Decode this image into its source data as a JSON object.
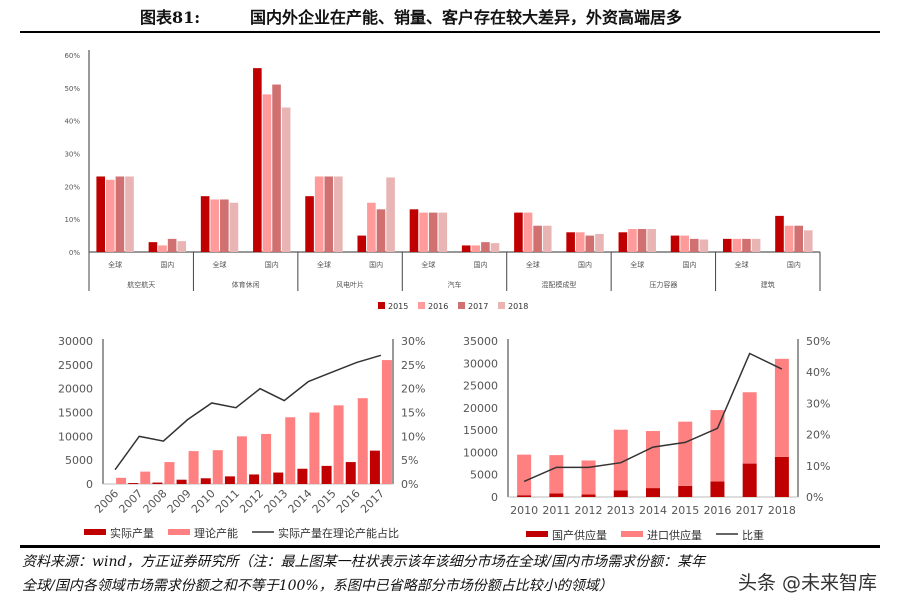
{
  "title": {
    "number": "图表81:",
    "text": "国内外企业在产能、销量、客户存在较大差异，外资高端居多"
  },
  "footer": {
    "line1": "资料来源：wind，方正证券研究所（注：最上图某一柱状表示该年该细分市场在全球/国内市场需求份额：某年",
    "line2": "全球/国内各领域市场需求份额之和不等于100%，系图中已省略部分市场份额占比较小的领域）"
  },
  "watermark": "头条 @未来智库",
  "chart_data": [
    {
      "type": "bar",
      "ylim": [
        0,
        60
      ],
      "yticks": [
        "0%",
        "10%",
        "20%",
        "30%",
        "40%",
        "50%",
        "60%"
      ],
      "legend_position": "bottom",
      "colors": [
        "#c00000",
        "#ff9b9b",
        "#d07070",
        "#e8b4b4"
      ],
      "series_names": [
        "2015",
        "2016",
        "2017",
        "2018"
      ],
      "groups": [
        {
          "name": "航空航天",
          "sub": [
            {
              "label": "全球",
              "values": [
                23,
                22,
                23,
                23
              ]
            },
            {
              "label": "国内",
              "values": [
                3,
                2,
                4,
                3.3
              ]
            }
          ]
        },
        {
          "name": "体育休闲",
          "sub": [
            {
              "label": "全球",
              "values": [
                17,
                16,
                16,
                15
              ]
            },
            {
              "label": "国内",
              "values": [
                56,
                48,
                51,
                44
              ]
            }
          ]
        },
        {
          "name": "风电叶片",
          "sub": [
            {
              "label": "全球",
              "values": [
                17,
                23,
                23,
                23
              ]
            },
            {
              "label": "国内",
              "values": [
                5,
                15,
                13,
                22.7
              ]
            }
          ]
        },
        {
          "name": "汽车",
          "sub": [
            {
              "label": "全球",
              "values": [
                13,
                12,
                12,
                12
              ]
            },
            {
              "label": "国内",
              "values": [
                2,
                2,
                3,
                2.7
              ]
            }
          ]
        },
        {
          "name": "混配模成型",
          "sub": [
            {
              "label": "全球",
              "values": [
                12,
                12,
                8,
                8
              ]
            },
            {
              "label": "国内",
              "values": [
                6,
                6,
                5,
                5.5
              ]
            }
          ]
        },
        {
          "name": "压力容器",
          "sub": [
            {
              "label": "全球",
              "values": [
                6,
                7,
                7,
                7
              ]
            },
            {
              "label": "国内",
              "values": [
                5,
                5,
                4,
                3.8
              ]
            }
          ]
        },
        {
          "name": "建筑",
          "sub": [
            {
              "label": "全球",
              "values": [
                4,
                4,
                4,
                4
              ]
            },
            {
              "label": "国内",
              "values": [
                11,
                8,
                8,
                6.6
              ]
            }
          ]
        }
      ]
    },
    {
      "type": "bar",
      "categories": [
        "2006",
        "2007",
        "2008",
        "2009",
        "2010",
        "2011",
        "2012",
        "2013",
        "2014",
        "2015",
        "2016",
        "2017"
      ],
      "ylim": [
        0,
        30000
      ],
      "y2lim": [
        0,
        30
      ],
      "yticks": [
        "0",
        "5000",
        "10000",
        "15000",
        "20000",
        "25000",
        "30000"
      ],
      "y2ticks": [
        "0%",
        "5%",
        "10%",
        "15%",
        "20%",
        "25%",
        "30%"
      ],
      "legend_position": "bottom",
      "series": [
        {
          "name": "实际产量",
          "kind": "bar",
          "color": "#c00000",
          "values": [
            0,
            200,
            300,
            900,
            1200,
            1600,
            2000,
            2400,
            3200,
            3800,
            4600,
            7000
          ]
        },
        {
          "name": "理论产能",
          "kind": "bar",
          "color": "#ff8080",
          "values": [
            1300,
            2600,
            4600,
            6900,
            7100,
            10000,
            10500,
            14000,
            15000,
            16500,
            18000,
            26000
          ]
        },
        {
          "name": "实际产量在理论产能占比",
          "kind": "line",
          "axis": "right",
          "color": "#333333",
          "values": [
            3,
            10,
            9,
            13.5,
            17,
            16,
            20,
            17.5,
            21.5,
            23.5,
            25.5,
            27
          ]
        }
      ]
    },
    {
      "type": "bar",
      "stacked": true,
      "categories": [
        "2010",
        "2011",
        "2012",
        "2013",
        "2014",
        "2015",
        "2016",
        "2017",
        "2018"
      ],
      "ylim": [
        0,
        35000
      ],
      "y2lim": [
        0,
        50
      ],
      "yticks": [
        "0",
        "5000",
        "10000",
        "15000",
        "20000",
        "25000",
        "30000",
        "35000"
      ],
      "y2ticks": [
        "0%",
        "10%",
        "20%",
        "30%",
        "40%",
        "50%"
      ],
      "legend_position": "bottom",
      "series": [
        {
          "name": "国产供应量",
          "kind": "bar",
          "color": "#c00000",
          "values": [
            400,
            800,
            600,
            1500,
            2000,
            2500,
            3500,
            7500,
            9000
          ]
        },
        {
          "name": "进口供应量",
          "kind": "bar",
          "color": "#ff8080",
          "values": [
            9100,
            8600,
            7600,
            13600,
            12800,
            14400,
            16000,
            16000,
            22000
          ]
        },
        {
          "name": "比重",
          "kind": "line",
          "axis": "right",
          "color": "#333333",
          "values": [
            5,
            9.5,
            9.5,
            11,
            16,
            17.5,
            22,
            46,
            41
          ]
        }
      ]
    }
  ]
}
